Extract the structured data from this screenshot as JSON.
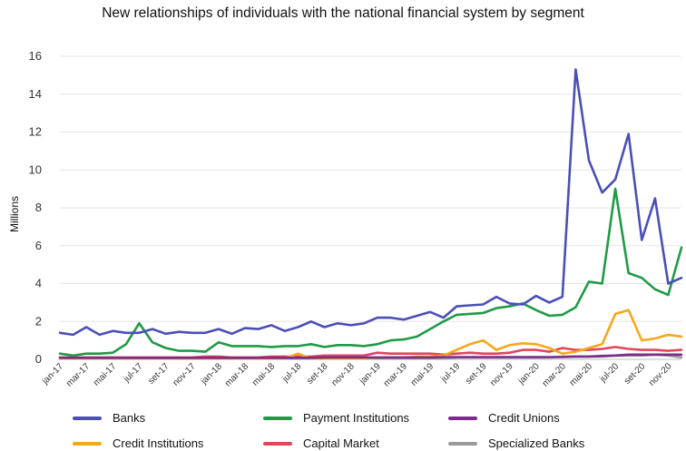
{
  "chart_data": {
    "type": "line",
    "title": "New relationships of individuals with the national financial system by segment",
    "xlabel": "",
    "ylabel": "Millions",
    "ylim": [
      0,
      16
    ],
    "yticks": [
      0,
      2,
      4,
      6,
      8,
      10,
      12,
      14,
      16
    ],
    "grid": true,
    "legend_position": "bottom",
    "x": [
      "jan-17",
      "fev-17",
      "mar-17",
      "abr-17",
      "mai-17",
      "jun-17",
      "jul-17",
      "ago-17",
      "set-17",
      "out-17",
      "nov-17",
      "dez-17",
      "jan-18",
      "fev-18",
      "mar-18",
      "abr-18",
      "mai-18",
      "jun-18",
      "jul-18",
      "ago-18",
      "set-18",
      "out-18",
      "nov-18",
      "dez-18",
      "jan-19",
      "fev-19",
      "mar-19",
      "abr-19",
      "mai-19",
      "jun-19",
      "jul-19",
      "ago-19",
      "set-19",
      "out-19",
      "nov-19",
      "dez-19",
      "jan-20",
      "fev-20",
      "mar-20",
      "abr-20",
      "mai-20",
      "jun-20",
      "jul-20",
      "ago-20",
      "set-20",
      "out-20",
      "nov-20",
      "dez-20"
    ],
    "xtick_labels": [
      "jan-17",
      "mar-17",
      "mai-17",
      "jul-17",
      "set-17",
      "nov-17",
      "jan-18",
      "mar-18",
      "mai-18",
      "jul-18",
      "set-18",
      "nov-18",
      "jan-19",
      "mar-19",
      "mai-19",
      "jul-19",
      "set-19",
      "nov-19",
      "jan-20",
      "mar-20",
      "mai-20",
      "jul-20",
      "set-20",
      "nov-20"
    ],
    "series": [
      {
        "name": "Banks",
        "color": "#4a4fb8",
        "values": [
          1.4,
          1.3,
          1.7,
          1.3,
          1.5,
          1.4,
          1.4,
          1.6,
          1.35,
          1.45,
          1.4,
          1.4,
          1.6,
          1.35,
          1.65,
          1.6,
          1.8,
          1.5,
          1.7,
          2.0,
          1.7,
          1.9,
          1.8,
          1.9,
          2.2,
          2.2,
          2.1,
          2.3,
          2.5,
          2.2,
          2.8,
          2.85,
          2.9,
          3.3,
          2.95,
          2.9,
          3.35,
          3.0,
          3.3,
          15.3,
          10.5,
          8.8,
          9.5,
          11.9,
          6.3,
          8.5,
          4.0,
          4.3
        ]
      },
      {
        "name": "Payment Institutions",
        "color": "#1f9a46",
        "values": [
          0.3,
          0.2,
          0.3,
          0.3,
          0.35,
          0.8,
          1.9,
          0.9,
          0.6,
          0.45,
          0.45,
          0.4,
          0.9,
          0.7,
          0.7,
          0.7,
          0.65,
          0.7,
          0.7,
          0.8,
          0.65,
          0.75,
          0.75,
          0.7,
          0.8,
          1.0,
          1.05,
          1.2,
          1.6,
          2.0,
          2.35,
          2.4,
          2.45,
          2.7,
          2.8,
          2.95,
          2.6,
          2.3,
          2.35,
          2.75,
          4.1,
          4.0,
          9.0,
          4.55,
          4.3,
          3.7,
          3.4,
          5.9
        ]
      },
      {
        "name": "Credit Unions",
        "color": "#7a2b8c",
        "values": [
          0.08,
          0.08,
          0.08,
          0.08,
          0.08,
          0.08,
          0.08,
          0.08,
          0.08,
          0.08,
          0.08,
          0.08,
          0.08,
          0.08,
          0.08,
          0.08,
          0.08,
          0.08,
          0.08,
          0.08,
          0.1,
          0.1,
          0.1,
          0.1,
          0.1,
          0.1,
          0.1,
          0.1,
          0.1,
          0.12,
          0.12,
          0.12,
          0.12,
          0.12,
          0.12,
          0.12,
          0.12,
          0.12,
          0.12,
          0.15,
          0.15,
          0.18,
          0.2,
          0.25,
          0.25,
          0.25,
          0.25,
          0.25
        ]
      },
      {
        "name": "Credit Institutions",
        "color": "#f5a81c",
        "values": [
          0.05,
          0.05,
          0.05,
          0.05,
          0.05,
          0.05,
          0.05,
          0.05,
          0.05,
          0.05,
          0.05,
          0.05,
          0.05,
          0.05,
          0.05,
          0.05,
          0.05,
          0.05,
          0.3,
          0.05,
          0.05,
          0.05,
          0.05,
          0.05,
          0.1,
          0.1,
          0.1,
          0.15,
          0.15,
          0.2,
          0.5,
          0.8,
          1.0,
          0.5,
          0.75,
          0.85,
          0.8,
          0.6,
          0.3,
          0.4,
          0.6,
          0.8,
          2.4,
          2.6,
          1.0,
          1.1,
          1.3,
          1.2
        ]
      },
      {
        "name": "Capital Market",
        "color": "#e0455a",
        "values": [
          0.1,
          0.1,
          0.1,
          0.1,
          0.1,
          0.1,
          0.1,
          0.1,
          0.1,
          0.1,
          0.1,
          0.15,
          0.15,
          0.1,
          0.1,
          0.1,
          0.15,
          0.15,
          0.15,
          0.15,
          0.2,
          0.2,
          0.2,
          0.2,
          0.35,
          0.3,
          0.3,
          0.3,
          0.3,
          0.25,
          0.3,
          0.35,
          0.3,
          0.3,
          0.35,
          0.5,
          0.5,
          0.4,
          0.6,
          0.5,
          0.5,
          0.55,
          0.65,
          0.55,
          0.5,
          0.5,
          0.45,
          0.5
        ]
      },
      {
        "name": "Specialized Banks",
        "color": "#9a9a9a",
        "values": [
          0.05,
          0.05,
          0.05,
          0.05,
          0.05,
          0.05,
          0.05,
          0.05,
          0.05,
          0.05,
          0.05,
          0.05,
          0.05,
          0.05,
          0.05,
          0.05,
          0.05,
          0.05,
          0.05,
          0.05,
          0.05,
          0.05,
          0.05,
          0.05,
          0.05,
          0.05,
          0.05,
          0.05,
          0.05,
          0.05,
          0.1,
          0.1,
          0.1,
          0.1,
          0.1,
          0.1,
          0.1,
          0.1,
          0.15,
          0.15,
          0.15,
          0.15,
          0.2,
          0.2,
          0.2,
          0.25,
          0.2,
          0.1
        ]
      }
    ]
  }
}
